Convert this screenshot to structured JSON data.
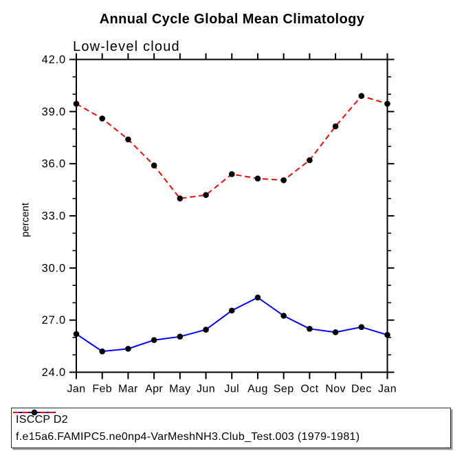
{
  "chart_data": {
    "type": "line",
    "title": "Annual Cycle Global Mean Climatology",
    "subtitle": "Low-level cloud",
    "ylabel": "percent",
    "x_categories": [
      "Jan",
      "Feb",
      "Mar",
      "Apr",
      "May",
      "Jun",
      "Jul",
      "Aug",
      "Sep",
      "Oct",
      "Nov",
      "Dec",
      "Jan"
    ],
    "ylim": [
      24.0,
      42.0
    ],
    "y_major_ticks": [
      24.0,
      27.0,
      30.0,
      33.0,
      36.0,
      39.0,
      42.0
    ],
    "y_minor_step": 1.0,
    "grid": false,
    "legend_position": "bottom",
    "axis_color": "#000000",
    "marker_color": "#000000",
    "series": [
      {
        "name": "ISCCP D2",
        "color": "#0000ff",
        "style": "solid",
        "marker": "black-filled-circle",
        "values": [
          26.2,
          25.2,
          25.35,
          25.85,
          26.05,
          26.45,
          27.55,
          28.3,
          27.25,
          26.5,
          26.3,
          26.6,
          26.15
        ]
      },
      {
        "name": "f.e15a6.FAMIPC5.ne0np4-VarMeshNH3.Club_Test.003 (1979-1981)",
        "color": "#ff0000",
        "style": "dashed",
        "marker": "black-filled-circle",
        "values": [
          39.45,
          38.6,
          37.4,
          35.9,
          34.0,
          34.2,
          35.4,
          35.15,
          35.05,
          36.2,
          38.15,
          39.9,
          39.45
        ]
      }
    ]
  }
}
